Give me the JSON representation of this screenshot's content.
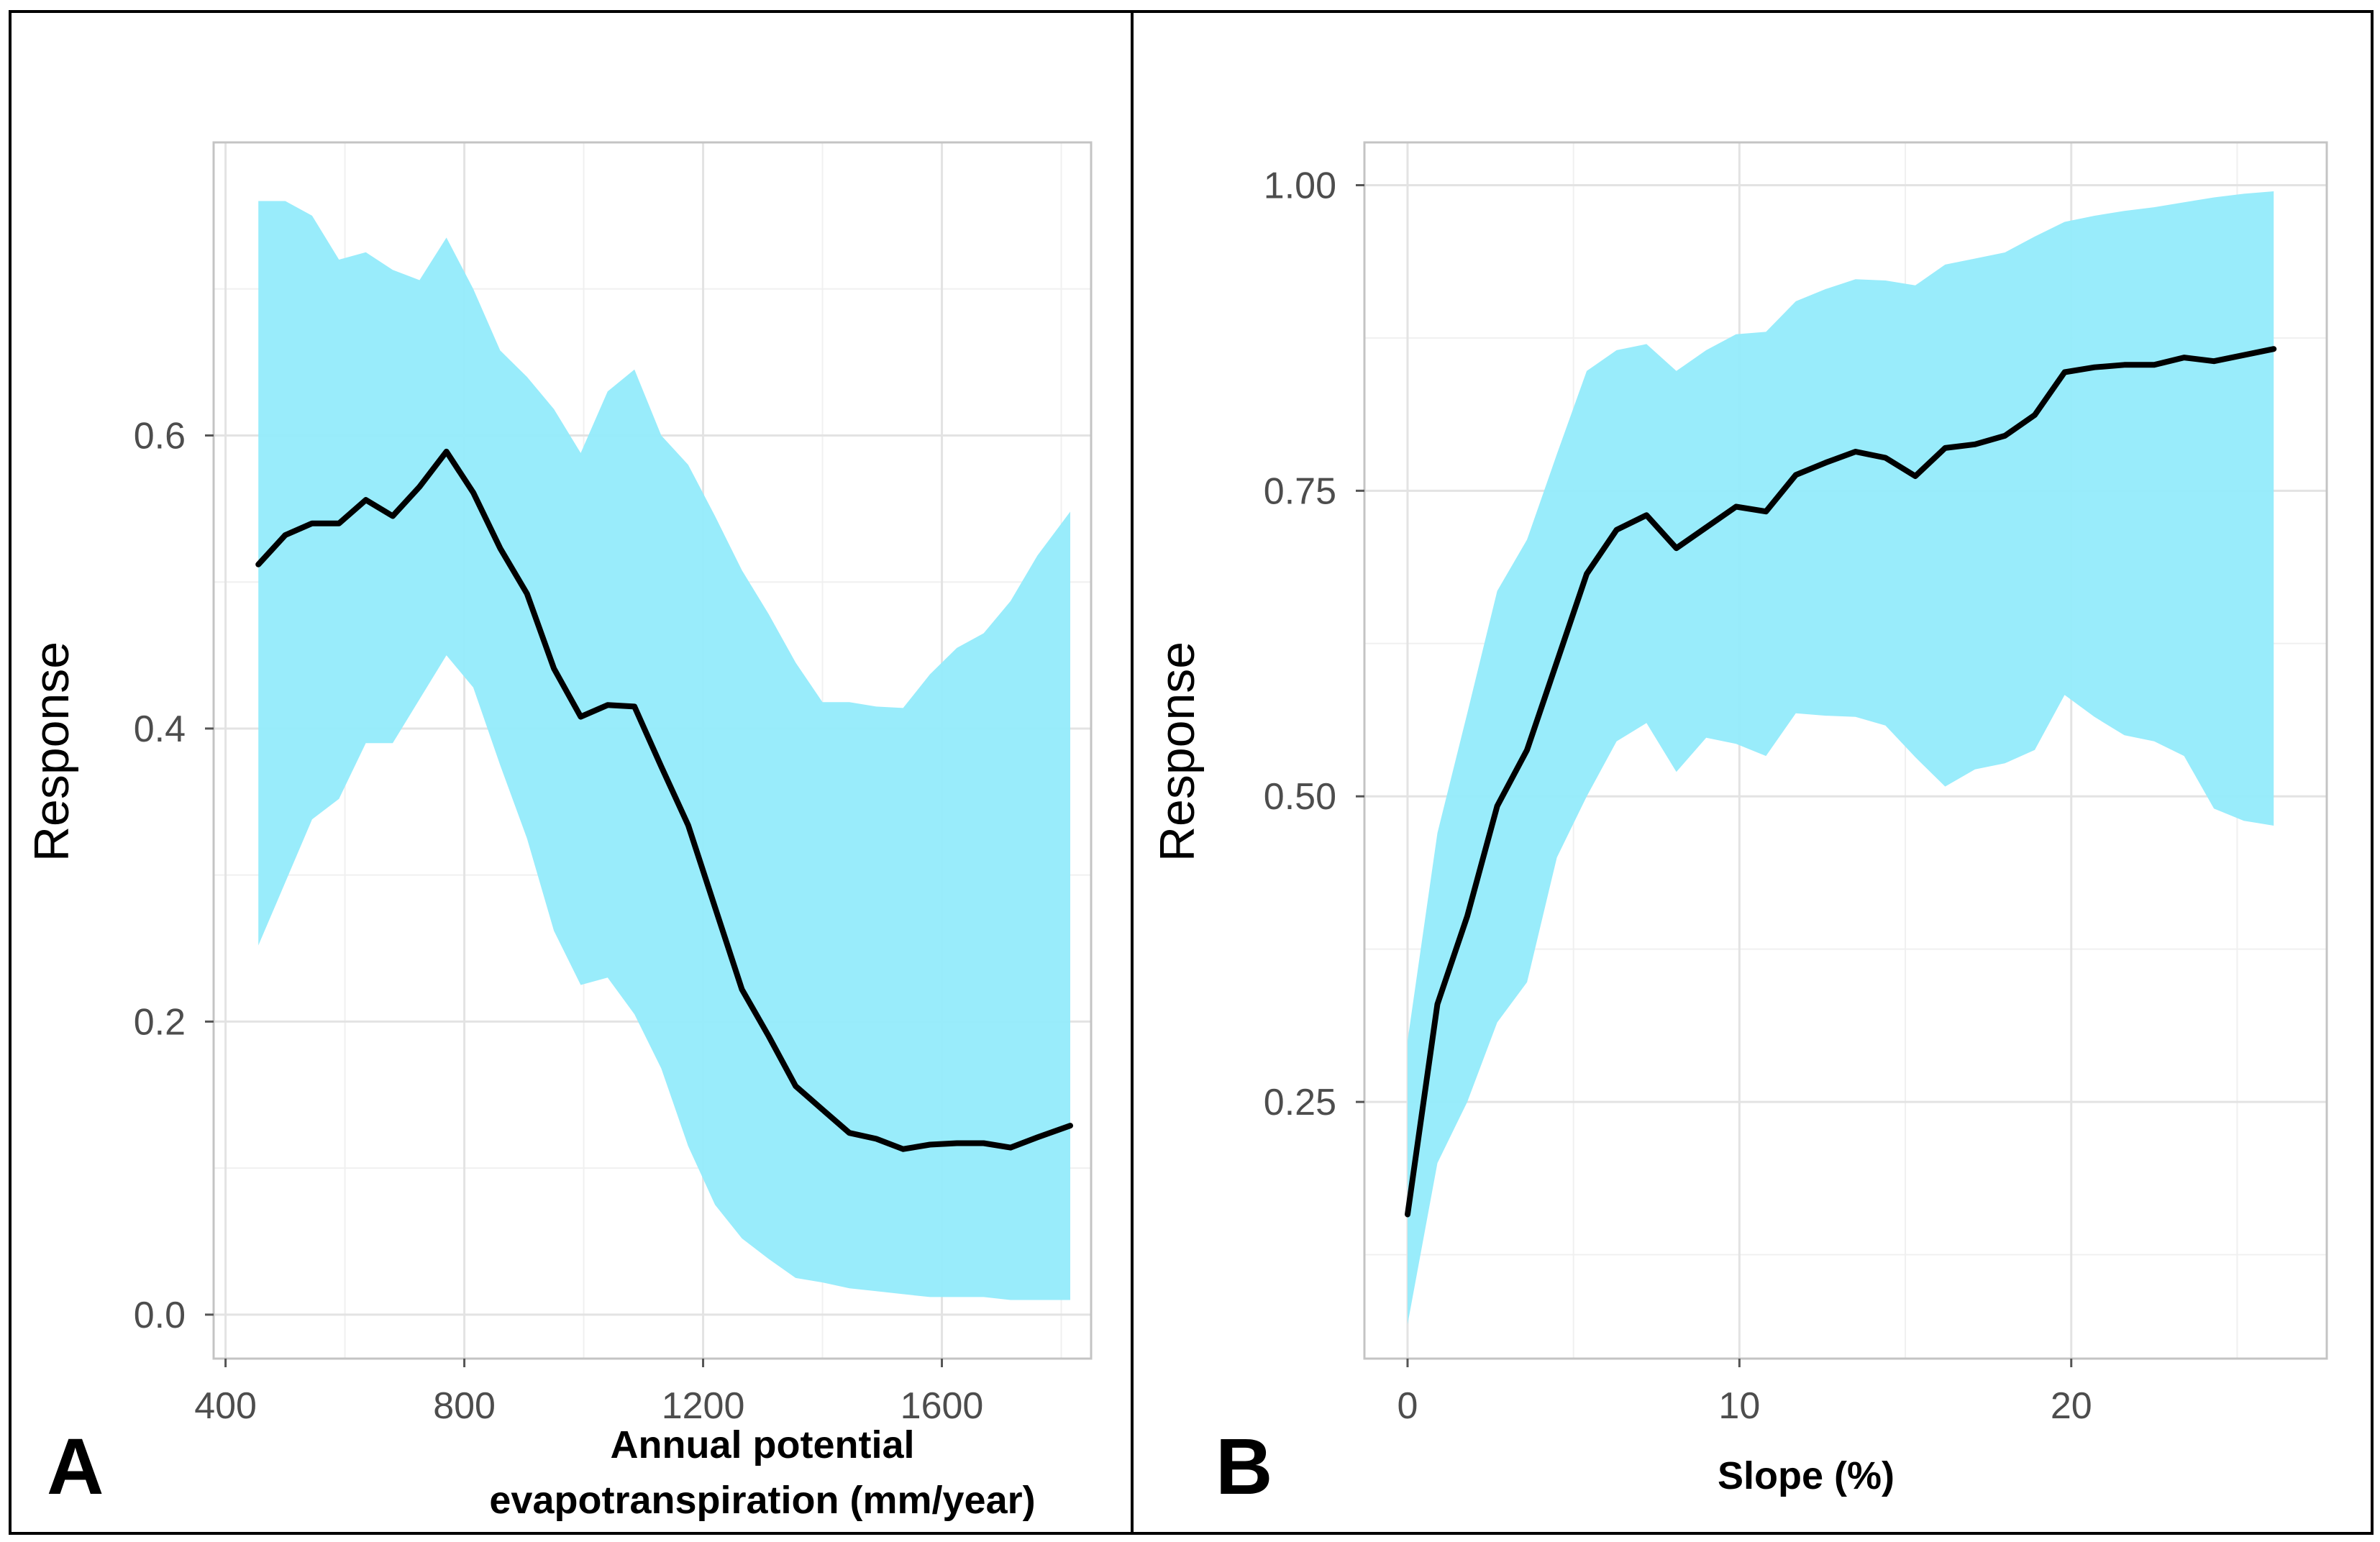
{
  "chart_data": [
    {
      "panel_label": "A",
      "type": "line",
      "ylabel": "Response",
      "xlabel_lines": [
        "Annual potential",
        "evapotranspiration (mm/year)"
      ],
      "xlim": [
        380,
        1850
      ],
      "ylim": [
        -0.03,
        0.8
      ],
      "xticks": [
        400,
        800,
        1200,
        1600
      ],
      "xtick_labels": [
        "400",
        "800",
        "1200",
        "1600"
      ],
      "yticks": [
        0.0,
        0.2,
        0.4,
        0.6
      ],
      "ytick_labels": [
        "0.0",
        "0.2",
        "0.4",
        "0.6"
      ],
      "grid": true,
      "line_color": "#000000",
      "band_color": "#94EBFB",
      "x": [
        455,
        500,
        545,
        590,
        635,
        680,
        725,
        770,
        815,
        860,
        905,
        950,
        995,
        1040,
        1085,
        1130,
        1175,
        1220,
        1265,
        1310,
        1355,
        1400,
        1445,
        1490,
        1535,
        1580,
        1625,
        1670,
        1715,
        1760,
        1815
      ],
      "y": [
        0.512,
        0.532,
        0.54,
        0.54,
        0.556,
        0.545,
        0.565,
        0.589,
        0.561,
        0.523,
        0.492,
        0.441,
        0.408,
        0.416,
        0.415,
        0.374,
        0.334,
        0.278,
        0.222,
        0.19,
        0.156,
        0.14,
        0.124,
        0.12,
        0.113,
        0.116,
        0.117,
        0.117,
        0.114,
        0.121,
        0.129
      ],
      "lower": [
        0.252,
        0.295,
        0.338,
        0.352,
        0.39,
        0.39,
        0.42,
        0.45,
        0.428,
        0.375,
        0.325,
        0.262,
        0.225,
        0.23,
        0.205,
        0.168,
        0.115,
        0.075,
        0.052,
        0.038,
        0.025,
        0.022,
        0.018,
        0.016,
        0.014,
        0.012,
        0.012,
        0.012,
        0.01,
        0.01,
        0.01
      ],
      "upper": [
        0.76,
        0.76,
        0.75,
        0.72,
        0.725,
        0.713,
        0.706,
        0.735,
        0.7,
        0.658,
        0.64,
        0.618,
        0.588,
        0.63,
        0.645,
        0.6,
        0.58,
        0.545,
        0.508,
        0.478,
        0.445,
        0.418,
        0.418,
        0.415,
        0.414,
        0.437,
        0.455,
        0.465,
        0.487,
        0.518,
        0.548
      ]
    },
    {
      "panel_label": "B",
      "type": "line",
      "ylabel": "Response",
      "xlabel_lines": [
        "Slope (%)"
      ],
      "xlim": [
        -1.3,
        27.7
      ],
      "ylim": [
        0.04,
        1.035
      ],
      "xticks": [
        0,
        10,
        20
      ],
      "xtick_labels": [
        "0",
        "10",
        "20"
      ],
      "yticks": [
        0.25,
        0.5,
        0.75,
        1.0
      ],
      "ytick_labels": [
        "0.25",
        "0.50",
        "0.75",
        "1.00"
      ],
      "grid": true,
      "line_color": "#000000",
      "band_color": "#94EBFB",
      "x": [
        0,
        0.9,
        1.8,
        2.7,
        3.6,
        4.5,
        5.4,
        6.3,
        7.2,
        8.1,
        9.0,
        9.9,
        10.8,
        11.7,
        12.6,
        13.5,
        14.4,
        15.3,
        16.2,
        17.1,
        18.0,
        18.9,
        19.8,
        20.7,
        21.6,
        22.5,
        23.4,
        24.3,
        25.2,
        26.1
      ],
      "y": [
        0.158,
        0.33,
        0.402,
        0.492,
        0.538,
        0.61,
        0.682,
        0.718,
        0.73,
        0.703,
        0.72,
        0.737,
        0.733,
        0.763,
        0.773,
        0.782,
        0.777,
        0.762,
        0.785,
        0.788,
        0.795,
        0.812,
        0.847,
        0.851,
        0.853,
        0.853,
        0.859,
        0.856,
        0.861,
        0.866
      ],
      "lower": [
        0.068,
        0.2,
        0.25,
        0.315,
        0.348,
        0.45,
        0.5,
        0.545,
        0.56,
        0.52,
        0.548,
        0.543,
        0.533,
        0.568,
        0.566,
        0.565,
        0.558,
        0.532,
        0.508,
        0.522,
        0.527,
        0.538,
        0.583,
        0.565,
        0.55,
        0.545,
        0.533,
        0.49,
        0.48,
        0.476
      ],
      "upper": [
        0.3,
        0.47,
        0.568,
        0.668,
        0.71,
        0.78,
        0.848,
        0.865,
        0.87,
        0.848,
        0.865,
        0.878,
        0.88,
        0.905,
        0.915,
        0.923,
        0.922,
        0.918,
        0.935,
        0.94,
        0.945,
        0.958,
        0.97,
        0.975,
        0.979,
        0.982,
        0.986,
        0.99,
        0.993,
        0.995
      ]
    }
  ]
}
